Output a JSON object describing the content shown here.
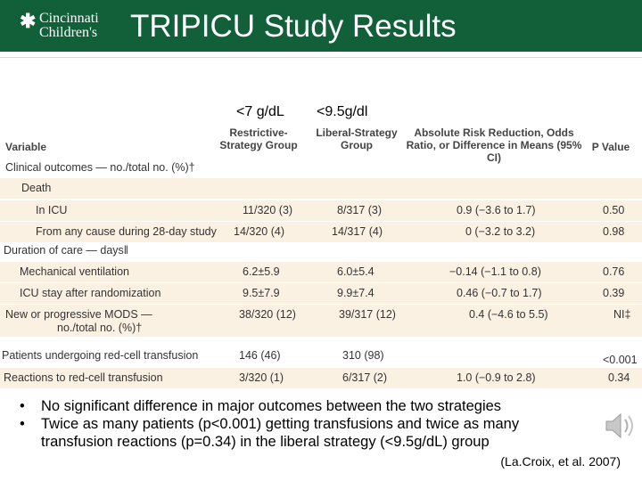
{
  "header": {
    "logo_line1": "Cincinnati",
    "logo_line2": "Children's",
    "title": "TRIPICU Study Results"
  },
  "threshold_labels": {
    "restrictive": "<7 g/dL",
    "liberal": "<9.5g/dl"
  },
  "table": {
    "headers": {
      "variable": "Variable",
      "restrictive": "Restrictive-Strategy Group",
      "liberal": "Liberal-Strategy Group",
      "difference": "Absolute Risk Reduction, Odds Ratio, or Difference in Means (95% CI)",
      "p_value": "P Value"
    },
    "rows": [
      {
        "label": "Clinical outcomes — no./total no. (%)†",
        "restrictive": "",
        "liberal": "",
        "difference": "",
        "p": ""
      },
      {
        "label": "Death",
        "restrictive": "",
        "liberal": "",
        "difference": "",
        "p": ""
      },
      {
        "label": "In ICU",
        "restrictive": "11/320 (3)",
        "liberal": "8/317 (3)",
        "difference": "0.9 (−3.6 to 1.7)",
        "p": "0.50"
      },
      {
        "label": "From any cause during 28-day study",
        "restrictive": "14/320 (4)",
        "liberal": "14/317 (4)",
        "difference": "0 (−3.2 to 3.2)",
        "p": "0.98"
      },
      {
        "label": "Duration of care — days‖",
        "restrictive": "",
        "liberal": "",
        "difference": "",
        "p": ""
      },
      {
        "label": "Mechanical ventilation",
        "restrictive": "6.2±5.9",
        "liberal": "6.0±5.4",
        "difference": "−0.14 (−1.1 to 0.8)",
        "p": "0.76"
      },
      {
        "label": "ICU stay after randomization",
        "restrictive": "9.5±7.9",
        "liberal": "9.9±7.4",
        "difference": "0.46 (−0.7 to 1.7)",
        "p": "0.39"
      },
      {
        "label": "New or progressive MODS —",
        "label2": "no./total no. (%)†",
        "restrictive": "38/320 (12)",
        "liberal": "39/317 (12)",
        "difference": "0.4 (−4.6 to 5.5)",
        "p": "NI‡"
      },
      {
        "label": "Patients undergoing red-cell transfusion",
        "restrictive": "146 (46)",
        "liberal": "310 (98)",
        "difference": "",
        "p": "<0.001"
      },
      {
        "label": "Reactions to red-cell transfusion",
        "restrictive": "3/320 (1)",
        "liberal": "6/317 (2)",
        "difference": "1.0 (−0.9 to 2.8)",
        "p": "0.34"
      }
    ]
  },
  "bullets": [
    "No significant difference in major outcomes between the two strategies",
    "Twice as many patients (p<0.001) getting transfusions and twice as many transfusion reactions (p=0.34) in the liberal strategy (<9.5g/dL) group"
  ],
  "citation": "(La.Croix, et al. 2007)",
  "icons": {
    "audio": "speaker-icon"
  },
  "colors": {
    "header": "#12603a",
    "row_shade": "#fbf1e2"
  }
}
